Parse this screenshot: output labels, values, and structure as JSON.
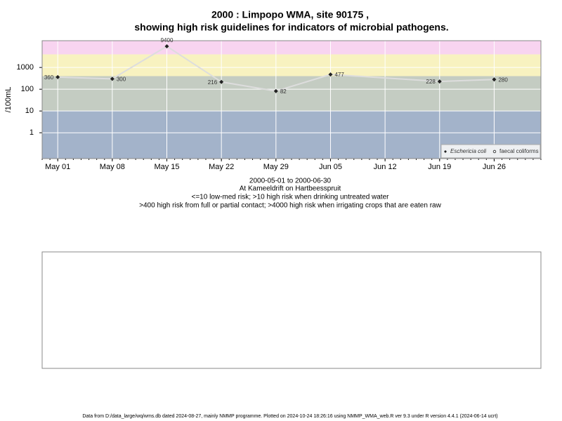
{
  "chart_data": {
    "type": "line",
    "title": [
      "2000 : Limpopo WMA, site 90175 ,",
      "showing high risk guidelines for indicators of microbial pathogens."
    ],
    "y_label": "/100mL",
    "subtitle": [
      "2000-05-01 to 2000-06-30",
      "At Kameeldrift on Hartbeesspruit",
      "<=10 low-med risk; >10 high risk when drinking untreated water",
      ">400 high risk from full or partial contact; >4000 high risk when irrigating crops that are eaten raw"
    ],
    "x": [
      "May 01",
      "May 08",
      "May 15",
      "May 22",
      "May 29",
      "Jun 05",
      "Jun 19",
      "Jun 26"
    ],
    "series": [
      {
        "name": "Eschericia coli",
        "color": "#222222",
        "line_color": "#dddddd",
        "values": [
          360,
          300,
          9400,
          216,
          82,
          477,
          228,
          280
        ]
      },
      {
        "name": "faecal coliforms",
        "color": "#222222",
        "values": [
          null,
          null,
          null,
          null,
          null,
          null,
          null,
          null
        ]
      }
    ],
    "xlim": [
      "Apr 29",
      "Jul 02"
    ],
    "xticks": [
      "May 01",
      "May 08",
      "May 15",
      "May 22",
      "May 29",
      "Jun 05",
      "Jun 12",
      "Jun 19",
      "Jun 26"
    ],
    "ylim": [
      0.065,
      17000
    ],
    "yticks": [
      1,
      10,
      100,
      1000
    ],
    "log_y": true,
    "grid": true,
    "legend": "bottom-right",
    "bands": [
      {
        "to": 10,
        "color": "#a3b3ca"
      },
      {
        "to": 400,
        "color": "#c4ccc2"
      },
      {
        "to": 4000,
        "color": "#f8f2c0"
      },
      {
        "to": 17000,
        "color": "#f8d4f0"
      }
    ],
    "footer": "Data from D:/data_large/wq/wms.db dated 2024-08-27, mainly NMMP programme. Plotted on 2024-10-24 18:26:16 using NMMP_WMA_web.R ver 9.3 under R version 4.4.1 (2024-06-14 ucrt)"
  }
}
